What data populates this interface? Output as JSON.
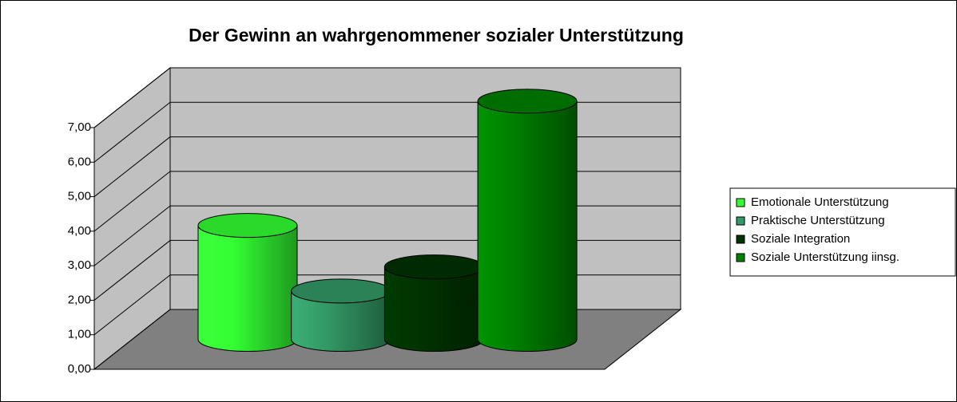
{
  "chart_data": {
    "type": "bar3d_cylinder",
    "title": "Der Gewinn an wahrgenommener sozialer Unterstützung",
    "categories": [
      null
    ],
    "series": [
      {
        "name": "Emotionale Unterstützung",
        "color": "#33ff33",
        "values": [
          3.3
        ]
      },
      {
        "name": "Praktische Unterstützung",
        "color": "#339966",
        "values": [
          1.4
        ]
      },
      {
        "name": "Soziale Integration",
        "color": "#003300",
        "values": [
          2.1
        ]
      },
      {
        "name": "Soziale Unterstützung iinsg.",
        "color": "#008000",
        "values": [
          6.9
        ]
      }
    ],
    "ylim": [
      0,
      7
    ],
    "yticks": [
      {
        "value": 0,
        "label": "0,00"
      },
      {
        "value": 1,
        "label": "1,00"
      },
      {
        "value": 2,
        "label": "2,00"
      },
      {
        "value": 3,
        "label": "3,00"
      },
      {
        "value": 4,
        "label": "4,00"
      },
      {
        "value": 5,
        "label": "5,00"
      },
      {
        "value": 6,
        "label": "6,00"
      },
      {
        "value": 7,
        "label": "7,00"
      }
    ],
    "grid": true,
    "legend": "right"
  }
}
